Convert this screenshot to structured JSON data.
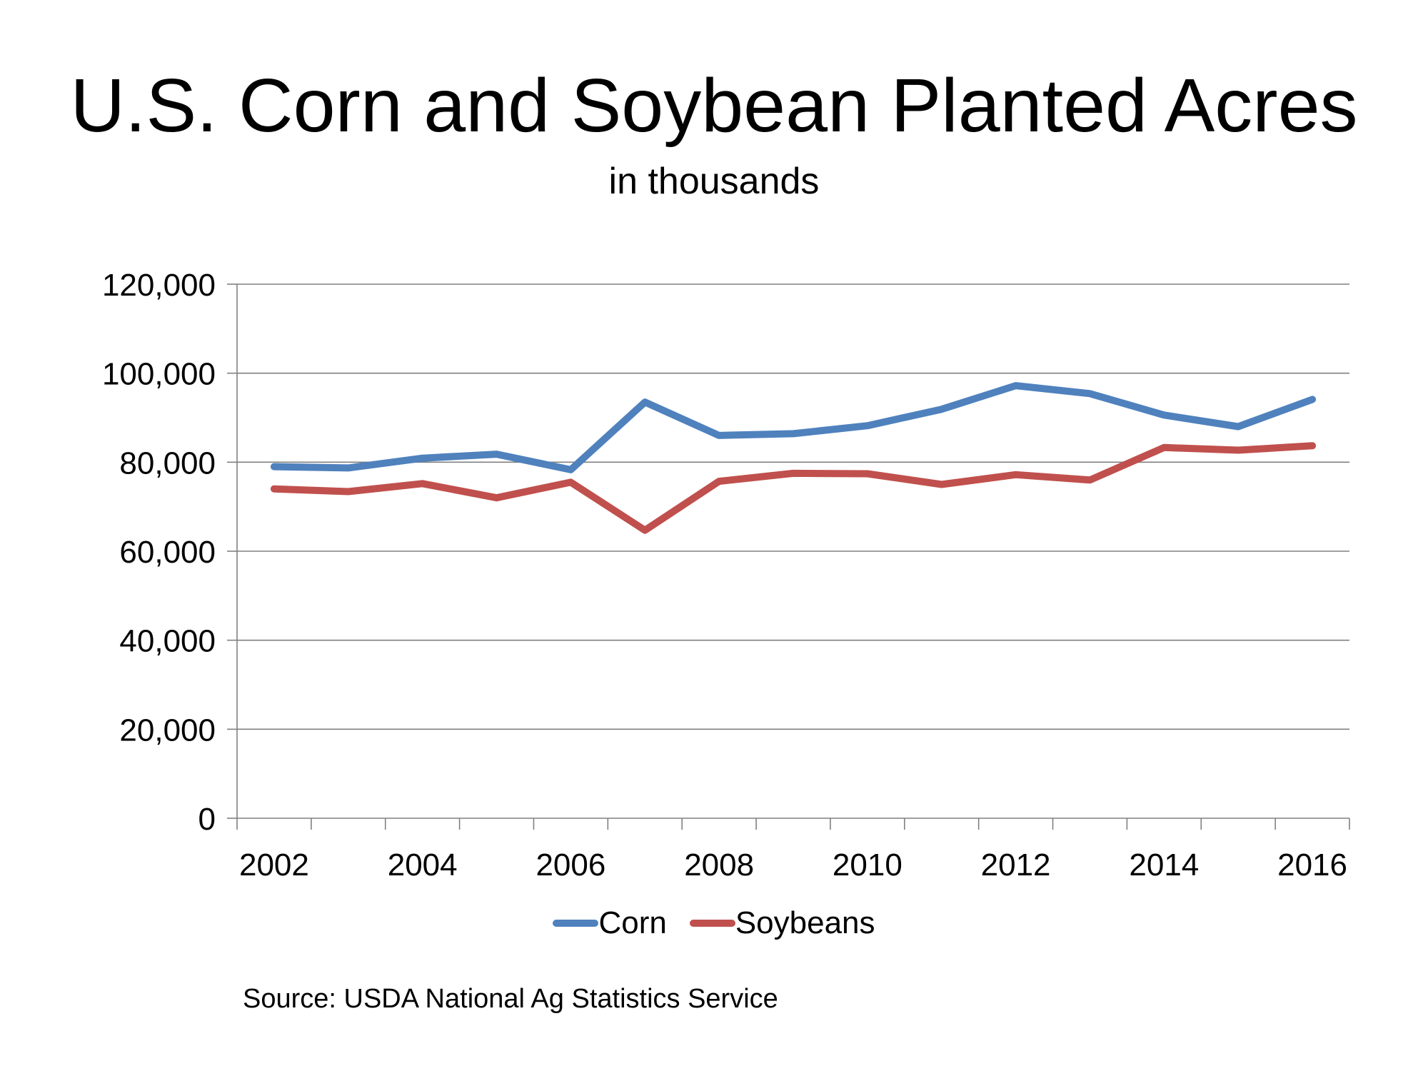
{
  "title": "U.S. Corn and Soybean Planted Acres",
  "subtitle": "in thousands",
  "source": "Source: USDA National Ag Statistics Service",
  "colors": {
    "corn": "#4F81BD",
    "soybeans": "#C0504D",
    "grid": "#808080",
    "axis": "#808080"
  },
  "chart_data": {
    "type": "line",
    "title": "U.S. Corn and Soybean Planted Acres",
    "subtitle": "in thousands",
    "x": [
      2002,
      2003,
      2004,
      2005,
      2006,
      2007,
      2008,
      2009,
      2010,
      2011,
      2012,
      2013,
      2014,
      2015,
      2016
    ],
    "x_tick_labels": [
      "2002",
      "2004",
      "2006",
      "2008",
      "2010",
      "2012",
      "2014",
      "2016"
    ],
    "y_tick_labels": [
      "0",
      "20,000",
      "40,000",
      "60,000",
      "80,000",
      "100,000",
      "120,000"
    ],
    "ylim": [
      0,
      120000
    ],
    "y_ticks": [
      0,
      20000,
      40000,
      60000,
      80000,
      100000,
      120000
    ],
    "grid": true,
    "legend_position": "bottom",
    "series": [
      {
        "name": "Corn",
        "color": "#4F81BD",
        "values": [
          79000,
          78700,
          80900,
          81800,
          78300,
          93500,
          86000,
          86400,
          88200,
          91900,
          97200,
          95400,
          90600,
          88000,
          94100
        ]
      },
      {
        "name": "Soybeans",
        "color": "#C0504D",
        "values": [
          74000,
          73400,
          75200,
          72000,
          75500,
          64700,
          75700,
          77500,
          77400,
          75000,
          77200,
          76000,
          83300,
          82700,
          83700
        ]
      }
    ]
  }
}
